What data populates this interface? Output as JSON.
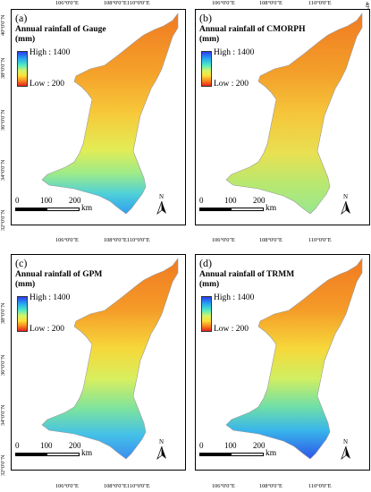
{
  "ticks": {
    "lon": [
      "106°0'0\"E",
      "108°0'0\"E",
      "110°0'0\"E"
    ],
    "lat": [
      "40°0'0\"N",
      "38°0'0\"N",
      "36°0'0\"N",
      "34°0'0\"N",
      "32°0'0\"N"
    ]
  },
  "legend": {
    "high": "High : 1400",
    "low": "Low : 200"
  },
  "scale": {
    "labels": [
      "0",
      "100",
      "200"
    ],
    "unit": "km"
  },
  "north": "N",
  "panels": [
    {
      "letter": "(a)",
      "title_line1": "Annual rainfall of Gauge",
      "title_line2": "(mm)"
    },
    {
      "letter": "(b)",
      "title_line1": "Annual rainfall of CMORPH",
      "title_line2": "(mm)"
    },
    {
      "letter": "(c)",
      "title_line1": "Annual rainfall of GPM",
      "title_line2": "(mm)"
    },
    {
      "letter": "(d)",
      "title_line1": "Annual rainfall of TRMM",
      "title_line2": "(mm)"
    }
  ],
  "colors": {
    "high": "#2b3df0",
    "mid": "#d2f56a",
    "low": "#e8211b"
  }
}
